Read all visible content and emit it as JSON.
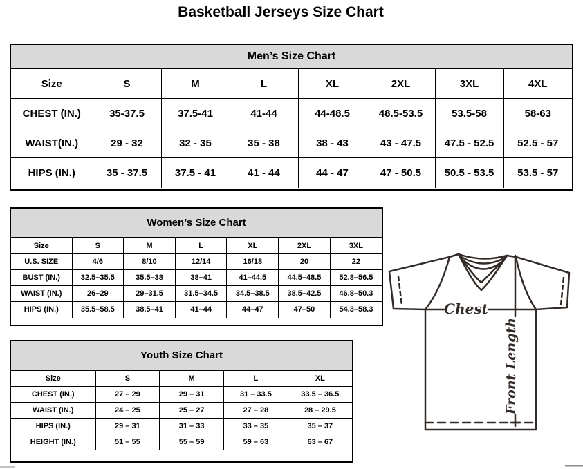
{
  "page_title": "Basketball Jerseys Size Chart",
  "colors": {
    "table_header_bg": "#d9d9d9",
    "border": "#000000",
    "diagram_line": "#332b28"
  },
  "tables": [
    {
      "id": "mens",
      "title": "Men’s Size Chart",
      "columns": [
        "Size",
        "S",
        "M",
        "L",
        "XL",
        "2XL",
        "3XL",
        "4XL"
      ],
      "rows": [
        [
          "CHEST (IN.)",
          "35-37.5",
          "37.5-41",
          "41-44",
          "44-48.5",
          "48.5-53.5",
          "53.5-58",
          "58-63"
        ],
        [
          "WAIST(IN.)",
          "29 - 32",
          "32 - 35",
          "35 - 38",
          "38 - 43",
          "43 - 47.5",
          "47.5 - 52.5",
          "52.5 - 57"
        ],
        [
          "HIPS (IN.)",
          "35 - 37.5",
          "37.5 - 41",
          "41 - 44",
          "44 - 47",
          "47 - 50.5",
          "50.5 - 53.5",
          "53.5 - 57"
        ]
      ]
    },
    {
      "id": "womens",
      "title": "Women’s Size Chart",
      "columns": [
        "Size",
        "S",
        "M",
        "L",
        "XL",
        "2XL",
        "3XL"
      ],
      "rows": [
        [
          "U.S. SIZE",
          "4/6",
          "8/10",
          "12/14",
          "16/18",
          "20",
          "22"
        ],
        [
          "BUST (IN.)",
          "32.5–35.5",
          "35.5–38",
          "38–41",
          "41–44.5",
          "44.5–48.5",
          "52.8–56.5"
        ],
        [
          "WAIST (IN.)",
          "26–29",
          "29–31.5",
          "31.5–34.5",
          "34.5–38.5",
          "38.5–42.5",
          "46.8–50.3"
        ],
        [
          "HIPS (IN.)",
          "35.5–58.5",
          "38.5–41",
          "41–44",
          "44–47",
          "47–50",
          "54.3–58.3"
        ]
      ]
    },
    {
      "id": "youth",
      "title": "Youth Size Chart",
      "columns": [
        "Size",
        "S",
        "M",
        "L",
        "XL"
      ],
      "rows": [
        [
          "CHEST (IN.)",
          "27 – 29",
          "29 – 31",
          "31 – 33.5",
          "33.5 – 36.5"
        ],
        [
          "WAIST (IN.)",
          "24 – 25",
          "25 – 27",
          "27 – 28",
          "28 – 29.5"
        ],
        [
          "HIPS (IN.)",
          "29 – 31",
          "31 – 33",
          "33 – 35",
          "35 – 37"
        ],
        [
          "HEIGHT (IN.)",
          "51 – 55",
          "55 – 59",
          "59 – 63",
          "63 – 67"
        ]
      ]
    }
  ],
  "diagram": {
    "chest_label": "Chest",
    "front_length_label": "Front Length"
  }
}
